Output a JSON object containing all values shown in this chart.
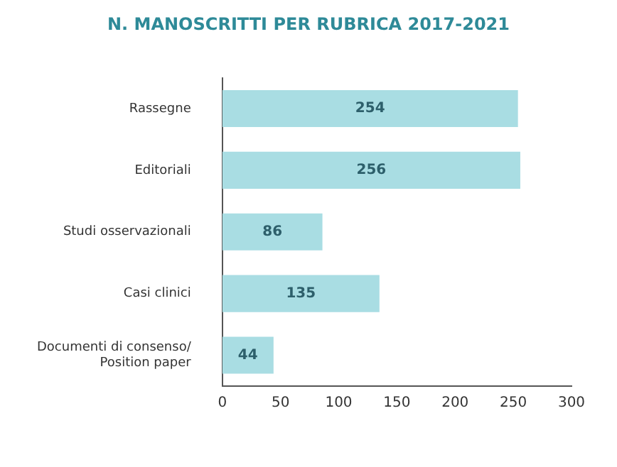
{
  "chart_data": {
    "type": "bar",
    "title": "N. MANOSCRITTI PER RUBRICA 2017-2021",
    "orientation": "horizontal",
    "categories": [
      "Rassegne",
      "Editoriali",
      "Studi osservazionali",
      "Casi clinici",
      "Documenti di consenso/ Position paper"
    ],
    "values": [
      254,
      256,
      86,
      135,
      44
    ],
    "color": "#a9dde3",
    "data_labels": true,
    "xlim": [
      0,
      300
    ],
    "xticks": [
      0,
      50,
      100,
      150,
      200,
      250,
      300
    ],
    "grid": false,
    "legend": false
  }
}
